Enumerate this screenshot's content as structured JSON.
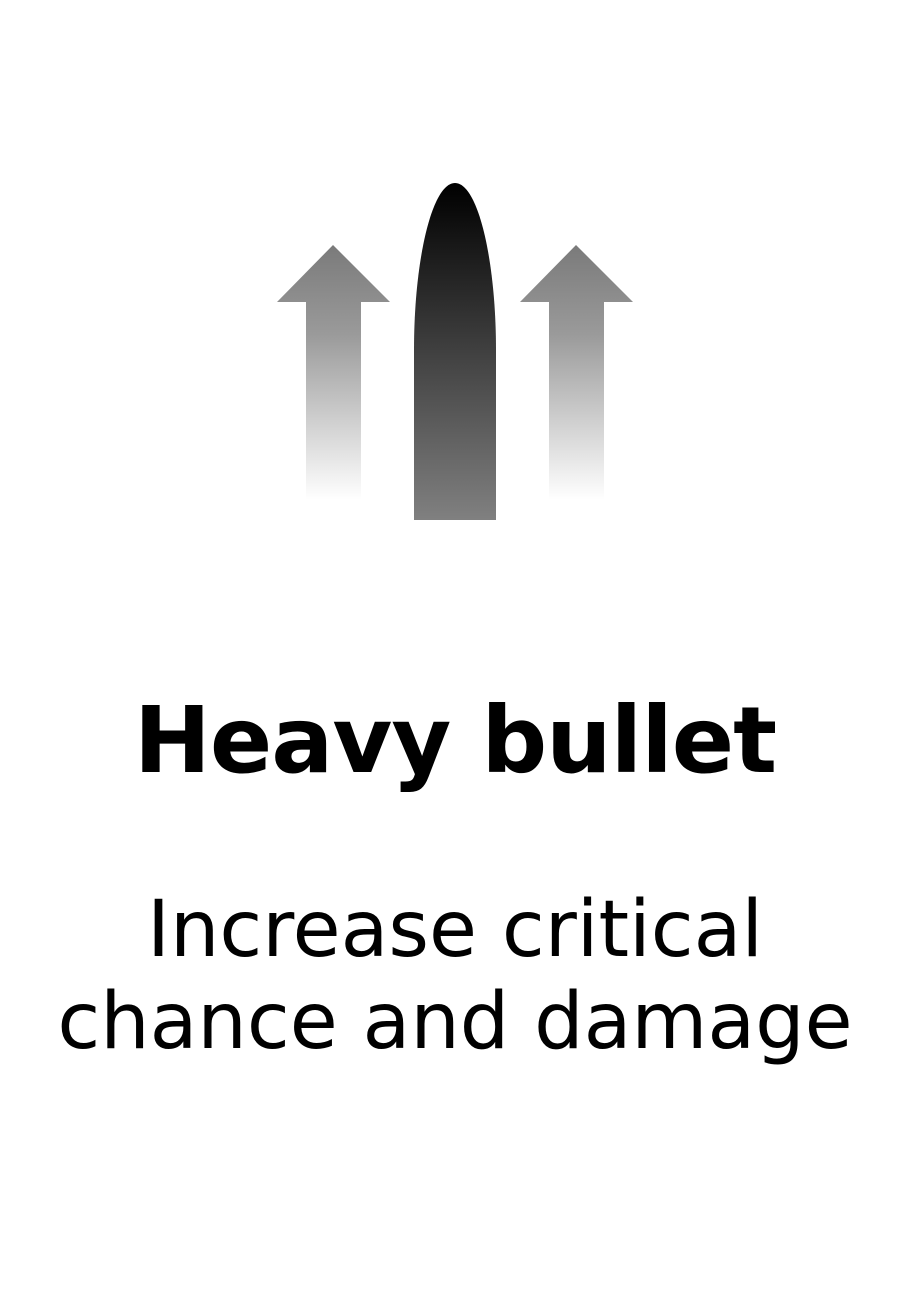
{
  "card": {
    "title": "Heavy bullet",
    "description_lines": [
      "Increase critical",
      "chance and damage"
    ]
  },
  "icon": {
    "name": "heavy-bullet-upgrade-icon",
    "bullet_color_top": "#000000",
    "bullet_color_bottom": "#808080",
    "arrow_color_top": "#7a7a7a",
    "arrow_color_bottom": "#ffffff"
  },
  "colors": {
    "background": "#ffffff",
    "text": "#000000"
  }
}
